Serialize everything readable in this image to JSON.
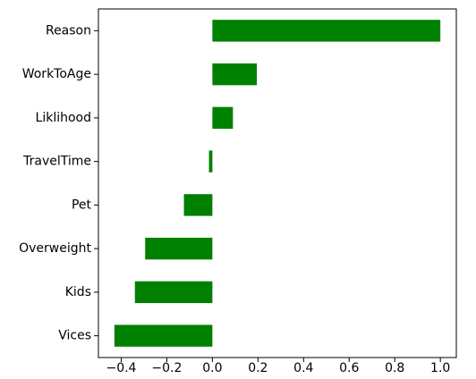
{
  "chart_data": {
    "type": "bar",
    "orientation": "horizontal",
    "categories": [
      "Reason",
      "WorkToAge",
      "Liklihood",
      "TravelTime",
      "Pet",
      "Overweight",
      "Kids",
      "Vices"
    ],
    "values": [
      1.0,
      0.195,
      0.09,
      -0.015,
      -0.125,
      -0.295,
      -0.34,
      -0.43
    ],
    "title": "",
    "xlabel": "",
    "ylabel": "",
    "xlim": [
      -0.5,
      1.07
    ],
    "xticks": [
      -0.4,
      -0.2,
      0.0,
      0.2,
      0.4,
      0.6,
      0.8,
      1.0
    ],
    "xtick_labels": [
      "−0.4",
      "−0.2",
      "0.0",
      "0.2",
      "0.4",
      "0.6",
      "0.8",
      "1.0"
    ],
    "grid": false,
    "legend": "none",
    "bar_color": "#008000"
  }
}
